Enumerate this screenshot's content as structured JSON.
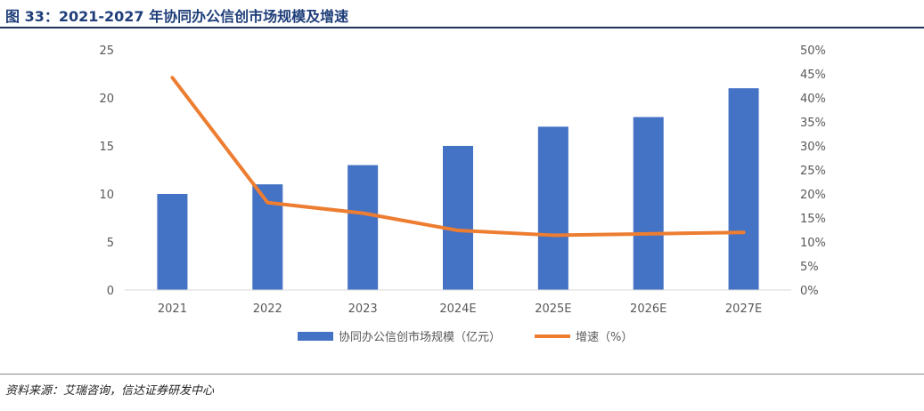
{
  "header": {
    "title": "图 33：2021-2027 年协同办公信创市场规模及增速"
  },
  "footer": {
    "source": "资料来源：艾瑞咨询，信达证券研发中心"
  },
  "chart_data": {
    "type": "bar+line",
    "categories": [
      "2021",
      "2022",
      "2023",
      "2024E",
      "2025E",
      "2026E",
      "2027E"
    ],
    "series": [
      {
        "name": "协同办公信创市场规模（亿元）",
        "type": "bar",
        "axis": "left",
        "values": [
          10,
          11,
          13,
          15,
          17,
          18,
          21
        ],
        "color": "#4472c4"
      },
      {
        "name": "增速（%）",
        "type": "line",
        "axis": "right",
        "values": [
          44.2,
          18.2,
          16.0,
          12.4,
          11.4,
          11.7,
          12.0
        ],
        "color": "#ed7d31"
      }
    ],
    "left_axis": {
      "min": 0,
      "max": 25,
      "ticks": [
        "0",
        "5",
        "10",
        "15",
        "20",
        "25"
      ]
    },
    "right_axis": {
      "min": 0,
      "max": 50,
      "ticks": [
        "0%",
        "5%",
        "10%",
        "15%",
        "20%",
        "25%",
        "30%",
        "35%",
        "40%",
        "45%",
        "50%"
      ]
    },
    "grid": false,
    "legend": "bottom"
  }
}
